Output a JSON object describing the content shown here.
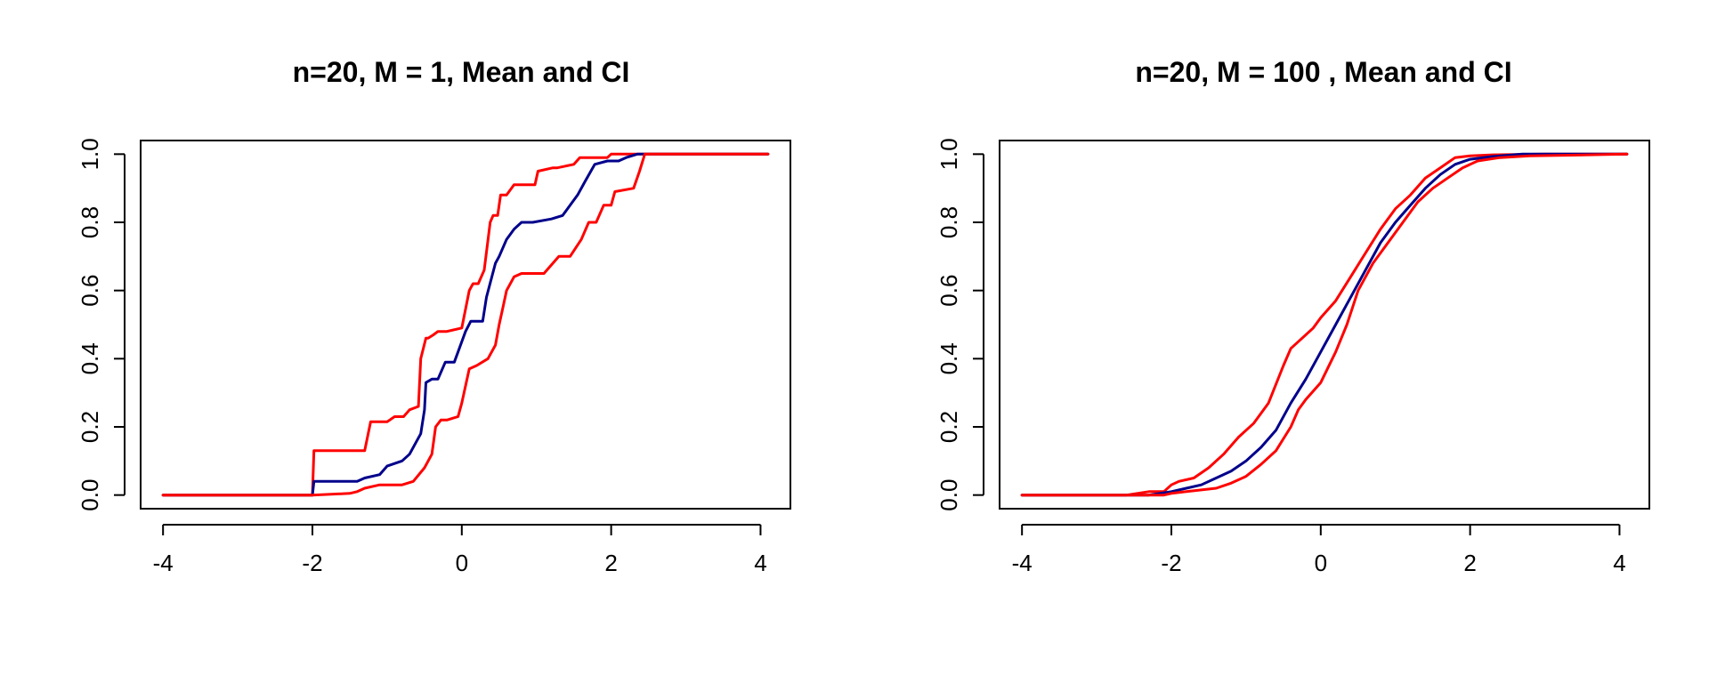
{
  "chart_data": [
    {
      "type": "line",
      "title": "n=20, M = 1, Mean and CI",
      "xlabel": "",
      "ylabel": "",
      "xlim": [
        -4.3,
        4.4
      ],
      "ylim": [
        -0.04,
        1.04
      ],
      "x_ticks": [
        -4,
        -2,
        0,
        2,
        4
      ],
      "x_tick_labels": [
        "-4",
        "-2",
        "0",
        "2",
        "4"
      ],
      "y_ticks": [
        0.0,
        0.2,
        0.4,
        0.6,
        0.8,
        1.0
      ],
      "y_tick_labels": [
        "0.0",
        "0.2",
        "0.4",
        "0.6",
        "0.8",
        "1.0"
      ],
      "grid": false,
      "legend": "none",
      "series": [
        {
          "color": "#FF0000",
          "role": "upper CI",
          "x": [
            -4.0,
            -2.0,
            -1.98,
            -1.3,
            -1.22,
            -1.0,
            -0.9,
            -0.78,
            -0.7,
            -0.58,
            -0.55,
            -0.48,
            -0.45,
            -0.38,
            -0.32,
            -0.28,
            -0.2,
            0.0,
            0.1,
            0.15,
            0.22,
            0.3,
            0.38,
            0.42,
            0.48,
            0.52,
            0.6,
            0.7,
            0.8,
            0.98,
            1.02,
            1.22,
            1.28,
            1.5,
            1.58,
            1.78,
            1.82,
            1.95,
            2.0,
            2.1,
            2.45,
            4.1
          ],
          "y": [
            0.0,
            0.0,
            0.13,
            0.13,
            0.215,
            0.215,
            0.23,
            0.23,
            0.25,
            0.26,
            0.4,
            0.46,
            0.46,
            0.47,
            0.48,
            0.48,
            0.48,
            0.49,
            0.6,
            0.62,
            0.62,
            0.66,
            0.8,
            0.82,
            0.82,
            0.88,
            0.88,
            0.91,
            0.91,
            0.91,
            0.95,
            0.96,
            0.96,
            0.97,
            0.99,
            0.99,
            0.99,
            0.99,
            1.0,
            1.0,
            1.0,
            1.0
          ]
        },
        {
          "color": "#00008B",
          "role": "mean",
          "x": [
            -4.0,
            -2.0,
            -1.98,
            -1.4,
            -1.3,
            -1.1,
            -1.0,
            -0.8,
            -0.7,
            -0.6,
            -0.55,
            -0.5,
            -0.48,
            -0.4,
            -0.32,
            -0.22,
            -0.1,
            0.05,
            0.12,
            0.28,
            0.33,
            0.45,
            0.5,
            0.6,
            0.7,
            0.8,
            0.95,
            1.2,
            1.35,
            1.45,
            1.55,
            1.65,
            1.78,
            1.95,
            2.1,
            2.2,
            2.35,
            4.1
          ],
          "y": [
            0.0,
            0.0,
            0.04,
            0.04,
            0.05,
            0.06,
            0.085,
            0.1,
            0.12,
            0.16,
            0.18,
            0.25,
            0.33,
            0.34,
            0.34,
            0.39,
            0.39,
            0.48,
            0.51,
            0.51,
            0.58,
            0.68,
            0.7,
            0.75,
            0.78,
            0.8,
            0.8,
            0.81,
            0.82,
            0.85,
            0.88,
            0.92,
            0.97,
            0.98,
            0.98,
            0.99,
            1.0,
            1.0
          ]
        },
        {
          "color": "#FF0000",
          "role": "lower CI",
          "x": [
            -4.0,
            -2.0,
            -1.5,
            -1.4,
            -1.3,
            -1.1,
            -0.8,
            -0.65,
            -0.5,
            -0.4,
            -0.35,
            -0.28,
            -0.2,
            -0.05,
            0.0,
            0.1,
            0.2,
            0.35,
            0.45,
            0.5,
            0.55,
            0.6,
            0.7,
            0.8,
            1.1,
            1.3,
            1.45,
            1.6,
            1.7,
            1.8,
            1.9,
            2.0,
            2.05,
            2.3,
            2.38,
            2.45,
            4.1
          ],
          "y": [
            0.0,
            0.0,
            0.005,
            0.01,
            0.02,
            0.03,
            0.03,
            0.04,
            0.08,
            0.12,
            0.2,
            0.22,
            0.22,
            0.23,
            0.27,
            0.37,
            0.38,
            0.4,
            0.44,
            0.5,
            0.55,
            0.6,
            0.64,
            0.65,
            0.65,
            0.7,
            0.7,
            0.75,
            0.8,
            0.8,
            0.85,
            0.85,
            0.89,
            0.9,
            0.95,
            1.0,
            1.0
          ]
        }
      ]
    },
    {
      "type": "line",
      "title": "n=20, M = 100 , Mean and CI",
      "xlabel": "",
      "ylabel": "",
      "xlim": [
        -4.3,
        4.4
      ],
      "ylim": [
        -0.04,
        1.04
      ],
      "x_ticks": [
        -4,
        -2,
        0,
        2,
        4
      ],
      "x_tick_labels": [
        "-4",
        "-2",
        "0",
        "2",
        "4"
      ],
      "y_ticks": [
        0.0,
        0.2,
        0.4,
        0.6,
        0.8,
        1.0
      ],
      "y_tick_labels": [
        "0.0",
        "0.2",
        "0.4",
        "0.6",
        "0.8",
        "1.0"
      ],
      "grid": false,
      "legend": "none",
      "series": [
        {
          "color": "#FF0000",
          "role": "upper CI",
          "x": [
            -4.0,
            -2.6,
            -2.3,
            -2.1,
            -2.0,
            -1.9,
            -1.7,
            -1.5,
            -1.3,
            -1.1,
            -0.9,
            -0.7,
            -0.5,
            -0.4,
            -0.3,
            -0.1,
            0.0,
            0.2,
            0.4,
            0.6,
            0.8,
            1.0,
            1.2,
            1.4,
            1.6,
            1.8,
            2.0,
            2.3,
            2.6,
            3.0,
            4.1
          ],
          "y": [
            0.0,
            0.0,
            0.01,
            0.01,
            0.03,
            0.04,
            0.05,
            0.08,
            0.12,
            0.17,
            0.21,
            0.27,
            0.38,
            0.43,
            0.45,
            0.49,
            0.52,
            0.57,
            0.64,
            0.71,
            0.78,
            0.84,
            0.88,
            0.93,
            0.96,
            0.99,
            0.995,
            0.998,
            0.999,
            1.0,
            1.0
          ]
        },
        {
          "color": "#00008B",
          "role": "mean",
          "x": [
            -4.0,
            -2.3,
            -2.0,
            -1.8,
            -1.6,
            -1.4,
            -1.2,
            -1.0,
            -0.8,
            -0.6,
            -0.4,
            -0.2,
            0.0,
            0.2,
            0.4,
            0.6,
            0.8,
            1.0,
            1.2,
            1.4,
            1.6,
            1.8,
            2.0,
            2.3,
            2.7,
            4.1
          ],
          "y": [
            0.0,
            0.0,
            0.01,
            0.02,
            0.03,
            0.05,
            0.07,
            0.1,
            0.14,
            0.19,
            0.27,
            0.34,
            0.42,
            0.5,
            0.58,
            0.66,
            0.74,
            0.8,
            0.85,
            0.9,
            0.94,
            0.97,
            0.985,
            0.993,
            1.0,
            1.0
          ]
        },
        {
          "color": "#FF0000",
          "role": "lower CI",
          "x": [
            -4.0,
            -2.1,
            -2.0,
            -1.8,
            -1.6,
            -1.4,
            -1.2,
            -1.0,
            -0.8,
            -0.6,
            -0.4,
            -0.3,
            -0.2,
            0.0,
            0.2,
            0.35,
            0.5,
            0.7,
            0.9,
            1.1,
            1.3,
            1.5,
            1.7,
            1.9,
            2.1,
            2.4,
            2.8,
            4.1
          ],
          "y": [
            0.0,
            0.0,
            0.005,
            0.01,
            0.015,
            0.02,
            0.035,
            0.055,
            0.09,
            0.13,
            0.2,
            0.25,
            0.28,
            0.33,
            0.42,
            0.5,
            0.6,
            0.68,
            0.74,
            0.8,
            0.86,
            0.9,
            0.93,
            0.96,
            0.98,
            0.99,
            0.995,
            1.0
          ]
        }
      ]
    }
  ]
}
